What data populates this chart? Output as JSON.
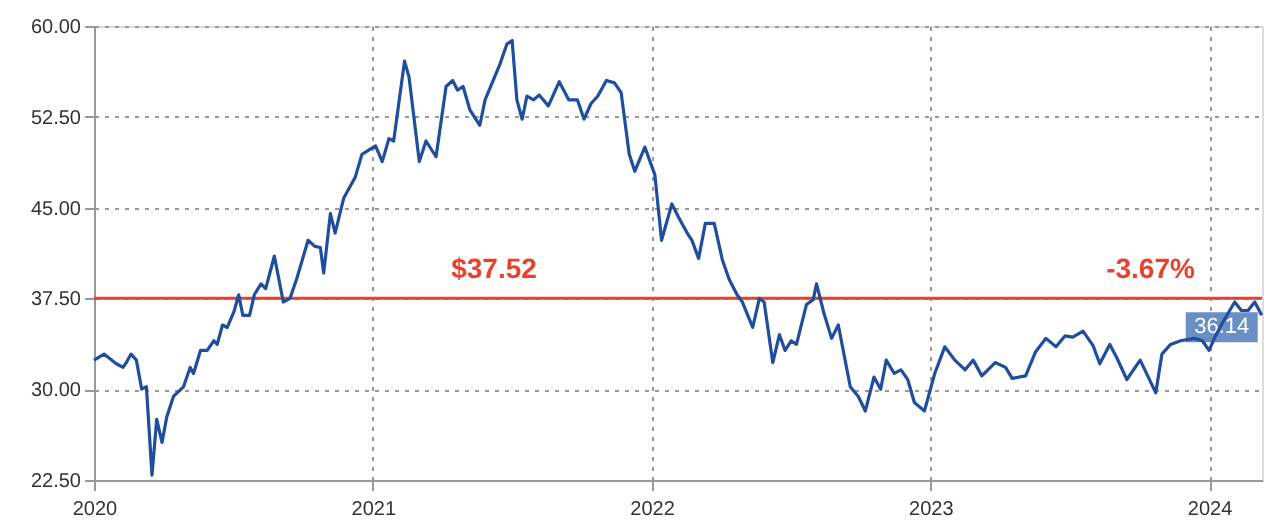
{
  "chart_data": {
    "type": "line",
    "x": [
      2020.0,
      2020.036,
      2020.08,
      2020.104,
      2020.116,
      2020.133,
      2020.152,
      2020.171,
      2020.188,
      2020.208,
      2020.225,
      2020.244,
      2020.261,
      2020.285,
      2020.321,
      2020.345,
      2020.357,
      2020.382,
      2020.406,
      2020.43,
      2020.442,
      2020.461,
      2020.478,
      2020.502,
      2020.519,
      2020.534,
      2020.558,
      2020.575,
      2020.599,
      2020.616,
      2020.647,
      2020.679,
      2020.703,
      2020.727,
      2020.768,
      2020.792,
      2020.812,
      2020.824,
      2020.848,
      2020.865,
      2020.896,
      2020.937,
      2020.961,
      2021.01,
      2021.034,
      2021.058,
      2021.075,
      2021.114,
      2021.13,
      2021.167,
      2021.191,
      2021.227,
      2021.263,
      2021.287,
      2021.304,
      2021.324,
      2021.348,
      2021.384,
      2021.403,
      2021.457,
      2021.481,
      2021.5,
      2021.517,
      2021.536,
      2021.553,
      2021.577,
      2021.597,
      2021.63,
      2021.669,
      2021.703,
      2021.734,
      2021.758,
      2021.783,
      2021.807,
      2021.838,
      2021.867,
      2021.891,
      2021.92,
      2021.94,
      2021.976,
      2022.012,
      2022.036,
      2022.073,
      2022.097,
      2022.128,
      2022.145,
      2022.169,
      2022.193,
      2022.225,
      2022.254,
      2022.278,
      2022.307,
      2022.326,
      2022.363,
      2022.387,
      2022.404,
      2022.435,
      2022.459,
      2022.479,
      2022.501,
      2022.52,
      2022.556,
      2022.58,
      2022.592,
      2022.617,
      2022.646,
      2022.67,
      2022.713,
      2022.742,
      2022.767,
      2022.798,
      2022.822,
      2022.842,
      2022.871,
      2022.895,
      2022.919,
      2022.943,
      2022.979,
      2023.016,
      2023.052,
      2023.088,
      2023.125,
      2023.154,
      2023.185,
      2023.233,
      2023.27,
      2023.294,
      2023.342,
      2023.378,
      2023.415,
      2023.451,
      2023.483,
      2023.511,
      2023.548,
      2023.584,
      2023.608,
      2023.644,
      2023.669,
      2023.705,
      2023.753,
      2023.809,
      2023.831,
      2023.862,
      2023.898,
      2023.947,
      2023.976,
      2024.0,
      2024.019,
      2024.044,
      2024.092,
      2024.116,
      2024.14,
      2024.164,
      2024.189
    ],
    "series": [
      {
        "color": "#1f4e9c",
        "values": [
          32.4,
          32.9,
          32.1,
          31.8,
          32.2,
          32.9,
          32.4,
          30.0,
          30.2,
          22.9,
          27.5,
          25.6,
          27.7,
          29.4,
          30.2,
          31.8,
          31.3,
          33.2,
          33.2,
          34.0,
          33.7,
          35.3,
          35.1,
          36.4,
          37.8,
          36.1,
          36.1,
          37.8,
          38.7,
          38.3,
          41.0,
          37.2,
          37.5,
          39.1,
          42.3,
          41.8,
          41.7,
          39.6,
          44.5,
          42.9,
          45.8,
          47.5,
          49.4,
          50.1,
          48.8,
          50.7,
          50.5,
          57.1,
          55.8,
          48.8,
          50.5,
          49.2,
          55.0,
          55.5,
          54.7,
          55.0,
          53.1,
          51.8,
          53.9,
          56.9,
          58.5,
          58.8,
          53.9,
          52.3,
          54.2,
          53.9,
          54.3,
          53.4,
          55.4,
          53.9,
          53.9,
          52.3,
          53.6,
          54.2,
          55.5,
          55.3,
          54.5,
          49.4,
          48.0,
          50.0,
          47.7,
          42.3,
          45.3,
          44.2,
          42.9,
          42.3,
          40.8,
          43.7,
          43.7,
          40.7,
          39.1,
          37.8,
          37.2,
          35.1,
          37.5,
          37.2,
          32.2,
          34.5,
          33.2,
          34.0,
          33.7,
          37.0,
          37.4,
          38.7,
          36.4,
          34.2,
          35.3,
          30.2,
          29.4,
          28.2,
          31.0,
          30.0,
          32.4,
          31.3,
          31.6,
          30.8,
          28.9,
          28.2,
          31.3,
          33.5,
          32.4,
          31.6,
          32.4,
          31.1,
          32.2,
          31.8,
          30.9,
          31.1,
          33.1,
          34.2,
          33.5,
          34.4,
          34.3,
          34.8,
          33.6,
          32.1,
          33.7,
          32.6,
          30.8,
          32.4,
          29.7,
          32.9,
          33.7,
          34.0,
          34.2,
          34.0,
          33.2,
          34.2,
          35.3,
          37.2,
          36.5,
          36.5,
          37.2,
          36.1
        ]
      }
    ],
    "xlim": [
      2020,
      2024.19
    ],
    "xticks": [
      2020,
      2021,
      2022,
      2023,
      2024
    ],
    "ylim": [
      22.5,
      60
    ],
    "yticks": [
      {
        "value": 22.5,
        "label": "22.50"
      },
      {
        "value": 30,
        "label": "30.00"
      },
      {
        "value": 37.5,
        "label": "37.50"
      },
      {
        "value": 45,
        "label": "45.00"
      },
      {
        "value": 52.5,
        "label": "52.50"
      },
      {
        "value": 60,
        "label": "60.00"
      }
    ],
    "grid": true,
    "line_style": "solid",
    "marker": "none",
    "ref_lines": [
      {
        "axis": "y",
        "value": 37.52,
        "label": "$37.52",
        "color": "#e8412c"
      }
    ],
    "annotations": [
      {
        "text": "-3.67%",
        "x": 2023.79,
        "y": 37.52
      },
      {
        "text": "36.14",
        "x": 2024.189,
        "y": 36.1
      }
    ]
  }
}
